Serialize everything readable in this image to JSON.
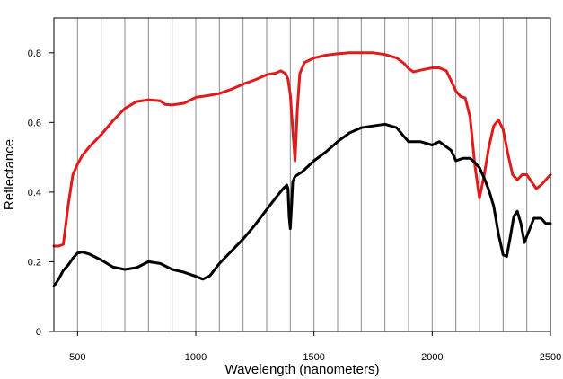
{
  "chart_data": {
    "type": "line",
    "title": "",
    "xlabel": "Wavelength (nanometers)",
    "ylabel": "Reflectance",
    "xlim": [
      400,
      2500
    ],
    "ylim": [
      0,
      0.9
    ],
    "x_ticks": [
      500,
      1000,
      1500,
      2000,
      2500
    ],
    "x_tick_labels": [
      "500",
      "1000",
      "1500",
      "2000",
      "2500"
    ],
    "y_ticks": [
      0,
      0.2,
      0.4,
      0.6,
      0.8
    ],
    "y_tick_labels": [
      "0",
      "0.2",
      "0.4",
      "0.6",
      "0.8"
    ],
    "vertical_gridlines": [
      500,
      600,
      700,
      800,
      900,
      1000,
      1100,
      1200,
      1300,
      1400,
      1500,
      1600,
      1700,
      1800,
      1900,
      2000,
      2100,
      2200,
      2300,
      2400
    ],
    "grid": "vertical",
    "legend": "none",
    "series": [
      {
        "color": "#e01b1b",
        "points": [
          [
            400,
            0.245
          ],
          [
            420,
            0.245
          ],
          [
            440,
            0.25
          ],
          [
            460,
            0.36
          ],
          [
            480,
            0.45
          ],
          [
            500,
            0.48
          ],
          [
            520,
            0.505
          ],
          [
            550,
            0.53
          ],
          [
            600,
            0.565
          ],
          [
            650,
            0.605
          ],
          [
            700,
            0.64
          ],
          [
            750,
            0.66
          ],
          [
            800,
            0.665
          ],
          [
            850,
            0.662
          ],
          [
            870,
            0.652
          ],
          [
            900,
            0.65
          ],
          [
            950,
            0.655
          ],
          [
            980,
            0.665
          ],
          [
            1000,
            0.672
          ],
          [
            1050,
            0.677
          ],
          [
            1100,
            0.683
          ],
          [
            1150,
            0.695
          ],
          [
            1200,
            0.71
          ],
          [
            1250,
            0.722
          ],
          [
            1300,
            0.737
          ],
          [
            1340,
            0.742
          ],
          [
            1360,
            0.748
          ],
          [
            1380,
            0.74
          ],
          [
            1390,
            0.725
          ],
          [
            1400,
            0.68
          ],
          [
            1410,
            0.58
          ],
          [
            1420,
            0.49
          ],
          [
            1430,
            0.64
          ],
          [
            1440,
            0.74
          ],
          [
            1460,
            0.772
          ],
          [
            1500,
            0.785
          ],
          [
            1550,
            0.793
          ],
          [
            1600,
            0.797
          ],
          [
            1650,
            0.8
          ],
          [
            1700,
            0.8
          ],
          [
            1750,
            0.8
          ],
          [
            1800,
            0.795
          ],
          [
            1850,
            0.785
          ],
          [
            1880,
            0.77
          ],
          [
            1900,
            0.755
          ],
          [
            1920,
            0.745
          ],
          [
            1950,
            0.75
          ],
          [
            2000,
            0.757
          ],
          [
            2030,
            0.757
          ],
          [
            2060,
            0.748
          ],
          [
            2080,
            0.72
          ],
          [
            2100,
            0.69
          ],
          [
            2120,
            0.675
          ],
          [
            2140,
            0.67
          ],
          [
            2160,
            0.615
          ],
          [
            2180,
            0.48
          ],
          [
            2200,
            0.383
          ],
          [
            2220,
            0.45
          ],
          [
            2240,
            0.53
          ],
          [
            2260,
            0.59
          ],
          [
            2280,
            0.607
          ],
          [
            2300,
            0.58
          ],
          [
            2320,
            0.51
          ],
          [
            2340,
            0.45
          ],
          [
            2360,
            0.435
          ],
          [
            2380,
            0.45
          ],
          [
            2400,
            0.45
          ],
          [
            2420,
            0.43
          ],
          [
            2440,
            0.41
          ],
          [
            2460,
            0.42
          ],
          [
            2500,
            0.45
          ]
        ]
      },
      {
        "color": "#000000",
        "points": [
          [
            400,
            0.13
          ],
          [
            420,
            0.15
          ],
          [
            440,
            0.175
          ],
          [
            460,
            0.19
          ],
          [
            480,
            0.21
          ],
          [
            500,
            0.225
          ],
          [
            520,
            0.228
          ],
          [
            550,
            0.222
          ],
          [
            600,
            0.205
          ],
          [
            650,
            0.185
          ],
          [
            700,
            0.178
          ],
          [
            750,
            0.183
          ],
          [
            800,
            0.2
          ],
          [
            850,
            0.195
          ],
          [
            900,
            0.178
          ],
          [
            950,
            0.17
          ],
          [
            1000,
            0.158
          ],
          [
            1030,
            0.15
          ],
          [
            1060,
            0.16
          ],
          [
            1100,
            0.195
          ],
          [
            1150,
            0.23
          ],
          [
            1200,
            0.265
          ],
          [
            1250,
            0.305
          ],
          [
            1300,
            0.35
          ],
          [
            1340,
            0.385
          ],
          [
            1370,
            0.41
          ],
          [
            1385,
            0.42
          ],
          [
            1390,
            0.41
          ],
          [
            1395,
            0.33
          ],
          [
            1400,
            0.295
          ],
          [
            1405,
            0.36
          ],
          [
            1410,
            0.43
          ],
          [
            1420,
            0.445
          ],
          [
            1450,
            0.458
          ],
          [
            1500,
            0.49
          ],
          [
            1550,
            0.515
          ],
          [
            1600,
            0.545
          ],
          [
            1650,
            0.57
          ],
          [
            1700,
            0.585
          ],
          [
            1750,
            0.59
          ],
          [
            1800,
            0.595
          ],
          [
            1850,
            0.585
          ],
          [
            1880,
            0.56
          ],
          [
            1900,
            0.545
          ],
          [
            1950,
            0.545
          ],
          [
            2000,
            0.535
          ],
          [
            2030,
            0.545
          ],
          [
            2050,
            0.535
          ],
          [
            2080,
            0.52
          ],
          [
            2100,
            0.49
          ],
          [
            2130,
            0.497
          ],
          [
            2160,
            0.497
          ],
          [
            2180,
            0.485
          ],
          [
            2200,
            0.47
          ],
          [
            2220,
            0.44
          ],
          [
            2240,
            0.405
          ],
          [
            2260,
            0.36
          ],
          [
            2280,
            0.28
          ],
          [
            2300,
            0.22
          ],
          [
            2315,
            0.215
          ],
          [
            2330,
            0.27
          ],
          [
            2345,
            0.33
          ],
          [
            2360,
            0.345
          ],
          [
            2375,
            0.31
          ],
          [
            2390,
            0.255
          ],
          [
            2410,
            0.29
          ],
          [
            2430,
            0.325
          ],
          [
            2460,
            0.325
          ],
          [
            2480,
            0.31
          ],
          [
            2500,
            0.31
          ]
        ]
      }
    ]
  }
}
